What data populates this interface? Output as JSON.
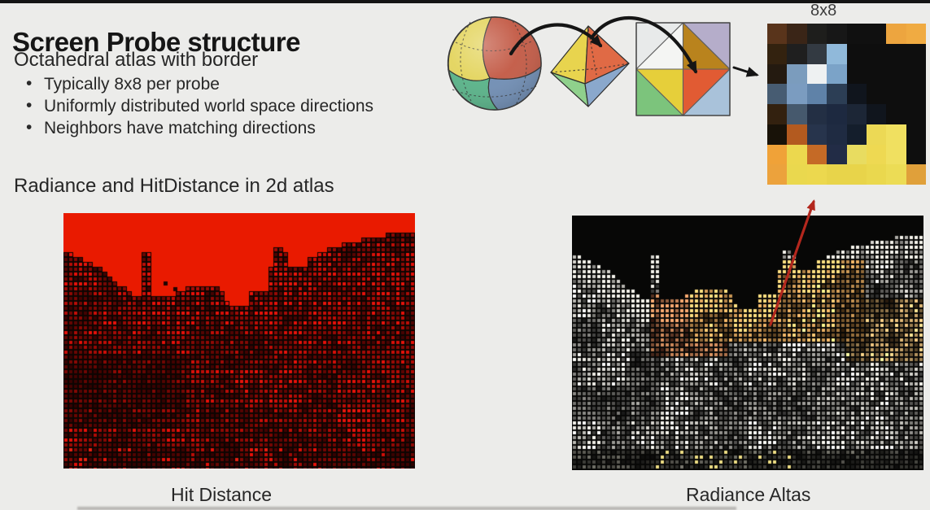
{
  "slide": {
    "title": "Screen Probe structure",
    "subtitle": "Octahedral atlas with border",
    "bullets": [
      "Typically 8x8 per probe",
      "Uniformly distributed world space directions",
      "Neighbors have matching directions"
    ],
    "atlas_heading": "Radiance and HitDistance in 2d atlas",
    "texture_label": "8x8",
    "caption_left": "Hit Distance",
    "caption_right": "Radiance Altas"
  },
  "diagram": {
    "sphere_colors": {
      "top_left": "#e3d45c",
      "top_right": "#c25843",
      "bottom_left": "#56b287",
      "bottom_right": "#6e8cb3"
    },
    "octahedron_colors": {
      "top_left": "#e8d44e",
      "top_right": "#e06a45",
      "bottom_left": "#8fd08c",
      "bottom_right": "#8aa8cc"
    },
    "unfold_colors": {
      "corner_tl": "#e8eaea",
      "corner_tr": "#b5adca",
      "corner_bl": "#7cc47c",
      "corner_br": "#a9c2da",
      "diamond_tl": "#f4f5f3",
      "diamond_tr": "#b9831d",
      "diamond_bl": "#e6cf3a",
      "diamond_br": "#e15b33"
    },
    "arrow_color": "#151515",
    "red_arrow_color": "#b3271d"
  },
  "texture_8x8": {
    "rows": [
      [
        "#59341b",
        "#3a2517",
        "#1e1e1c",
        "#171717",
        "#101010",
        "#101010",
        "#eda53f",
        "#f0ab42"
      ],
      [
        "#33220f",
        "#1f1f1f",
        "#333a42",
        "#90b9da",
        "#0e0e0e",
        "#0e0e0e",
        "#0e0e0e",
        "#0e0e0e"
      ],
      [
        "#241a10",
        "#7b9cbd",
        "#eef1f2",
        "#7ba3c8",
        "#0e0e0e",
        "#0e0e0e",
        "#0e0e0e",
        "#0e0e0e"
      ],
      [
        "#475c72",
        "#7b9cc0",
        "#5f82a8",
        "#2c3e55",
        "#10151d",
        "#0e0e0e",
        "#0e0e0e",
        "#0e0e0e"
      ],
      [
        "#33210f",
        "#46596d",
        "#232f44",
        "#1d2940",
        "#1c2636",
        "#10151d",
        "#0e0e0e",
        "#0e0e0e"
      ],
      [
        "#181208",
        "#b35a1f",
        "#27344c",
        "#1f2b42",
        "#141e2c",
        "#ecd955",
        "#f0e060",
        "#0e0e0e"
      ],
      [
        "#f0a238",
        "#ecd84e",
        "#c56a26",
        "#222c46",
        "#e8dc60",
        "#eed952",
        "#f0e060",
        "#0e0e0e"
      ],
      [
        "#eca23c",
        "#ead84e",
        "#ecd84e",
        "#e8d44a",
        "#e8d44a",
        "#ead84e",
        "#ecdc55",
        "#e0a03a"
      ]
    ]
  },
  "atlas_images": {
    "hit_distance": {
      "sky_color": "#e91a00",
      "background": "#0c0502"
    },
    "radiance": {
      "background": "#070706"
    }
  }
}
